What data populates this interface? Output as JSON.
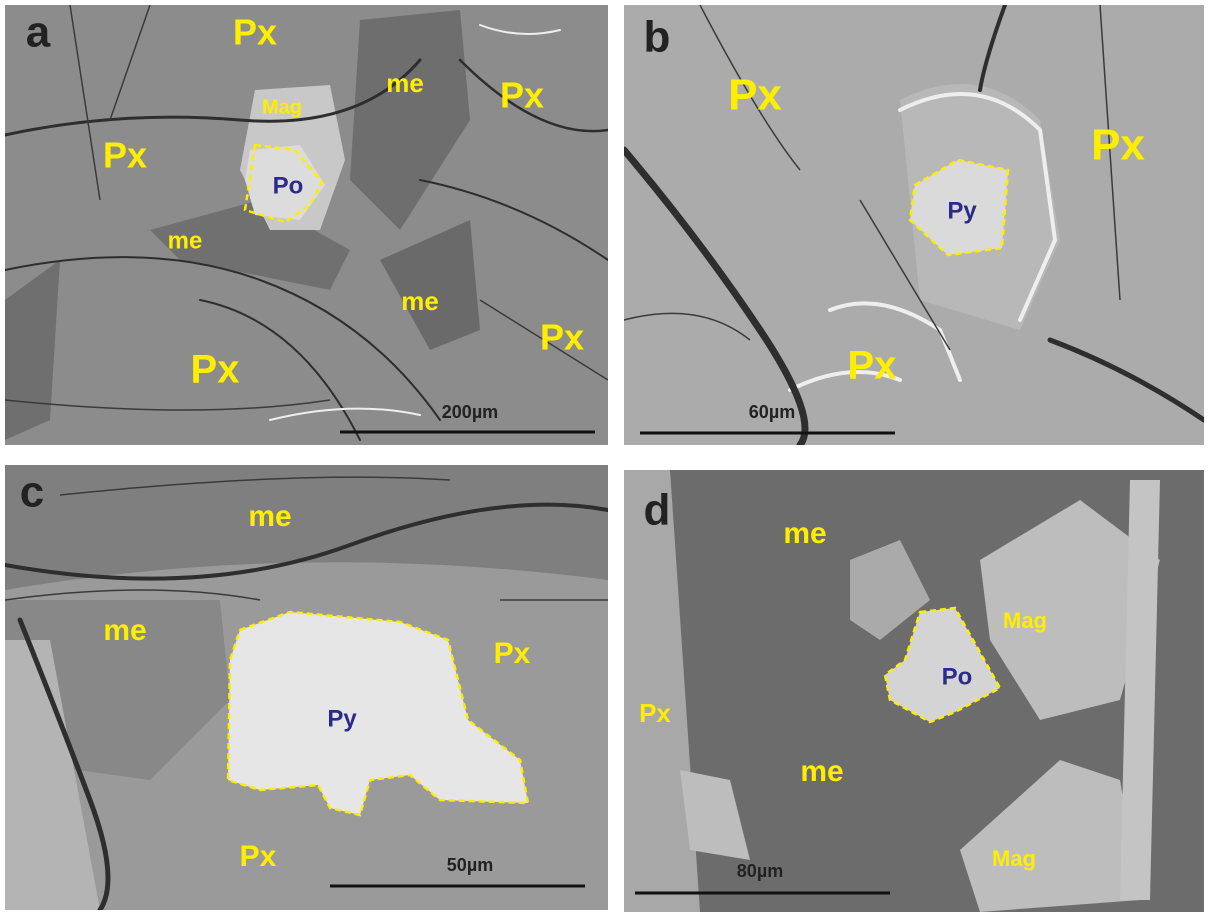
{
  "panels": [
    {
      "letter": "a",
      "labels": [
        "Px",
        "me",
        "Px",
        "Mag",
        "Px",
        "Po",
        "me",
        "me",
        "Px",
        "Px"
      ],
      "scale_bar": "200µm"
    },
    {
      "letter": "b",
      "labels": [
        "Px",
        "Px",
        "Py",
        "Px"
      ],
      "scale_bar": "60µm"
    },
    {
      "letter": "c",
      "labels": [
        "me",
        "me",
        "Px",
        "Py",
        "Px"
      ],
      "scale_bar": "50µm"
    },
    {
      "letter": "d",
      "labels": [
        "me",
        "Mag",
        "Po",
        "Px",
        "me",
        "Mag"
      ],
      "scale_bar": "80µm"
    }
  ]
}
